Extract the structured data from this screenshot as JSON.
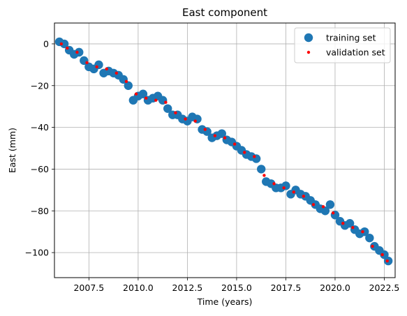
{
  "chart_data": {
    "type": "scatter",
    "title": "East component",
    "xlabel": "Time (years)",
    "ylabel": "East (mm)",
    "xlim": [
      2005.75,
      2023.05
    ],
    "ylim": [
      -112,
      10
    ],
    "xticks": [
      2007.5,
      2010.0,
      2012.5,
      2015.0,
      2017.5,
      2020.0,
      2022.5
    ],
    "xtick_labels": [
      "2007.5",
      "2010.0",
      "2012.5",
      "2015.0",
      "2017.5",
      "2020.0",
      "2022.5"
    ],
    "yticks": [
      0,
      -20,
      -40,
      -60,
      -80,
      -100
    ],
    "ytick_labels": [
      "0",
      "−20",
      "−40",
      "−60",
      "−80",
      "−100"
    ],
    "grid": true,
    "legend_position": "top-right",
    "series": [
      {
        "name": "training set",
        "color": "#1f77b4",
        "marker": "large-circle",
        "x": [
          2006.0,
          2006.25,
          2006.5,
          2006.75,
          2007.0,
          2007.25,
          2007.5,
          2007.75,
          2008.0,
          2008.25,
          2008.5,
          2008.75,
          2009.0,
          2009.25,
          2009.5,
          2009.75,
          2010.0,
          2010.25,
          2010.5,
          2010.75,
          2011.0,
          2011.25,
          2011.5,
          2011.75,
          2012.0,
          2012.25,
          2012.5,
          2012.75,
          2013.0,
          2013.25,
          2013.5,
          2013.75,
          2014.0,
          2014.25,
          2014.5,
          2014.75,
          2015.0,
          2015.25,
          2015.5,
          2015.75,
          2016.0,
          2016.25,
          2016.5,
          2016.75,
          2017.0,
          2017.25,
          2017.5,
          2017.75,
          2018.0,
          2018.25,
          2018.5,
          2018.75,
          2019.0,
          2019.25,
          2019.5,
          2019.75,
          2020.0,
          2020.25,
          2020.5,
          2020.75,
          2021.0,
          2021.25,
          2021.5,
          2021.75,
          2022.0,
          2022.25,
          2022.5,
          2022.7
        ],
        "y": [
          1,
          0,
          -3,
          -5,
          -4,
          -8,
          -11,
          -12,
          -10,
          -14,
          -13,
          -14,
          -15,
          -17,
          -20,
          -27,
          -25,
          -24,
          -27,
          -26,
          -25,
          -27,
          -31,
          -34,
          -34,
          -36,
          -37,
          -35,
          -36,
          -41,
          -42,
          -45,
          -44,
          -43,
          -46,
          -47,
          -49,
          -51,
          -53,
          -54,
          -55,
          -60,
          -66,
          -67,
          -69,
          -69,
          -68,
          -72,
          -70,
          -72,
          -73,
          -75,
          -77,
          -79,
          -80,
          -77,
          -82,
          -85,
          -87,
          -86,
          -89,
          -91,
          -90,
          -93,
          -97,
          -99,
          -101,
          -104
        ]
      },
      {
        "name": "validation set",
        "color": "#ff0000",
        "marker": "small-dot",
        "x": [
          2006.1,
          2006.4,
          2006.9,
          2007.4,
          2007.9,
          2008.4,
          2008.9,
          2009.4,
          2009.9,
          2010.4,
          2010.9,
          2011.4,
          2011.9,
          2012.4,
          2012.9,
          2013.4,
          2013.9,
          2014.4,
          2014.9,
          2015.4,
          2015.9,
          2016.4,
          2016.9,
          2017.4,
          2017.9,
          2018.4,
          2018.9,
          2019.4,
          2019.9,
          2020.4,
          2020.9,
          2021.4,
          2021.9,
          2022.4,
          2022.65
        ],
        "y": [
          0,
          -2,
          -4,
          -9,
          -11,
          -12,
          -14,
          -18,
          -24,
          -26,
          -27,
          -28,
          -33,
          -36,
          -37,
          -41,
          -44,
          -45,
          -48,
          -52,
          -54,
          -63,
          -67,
          -69,
          -71,
          -73,
          -77,
          -78,
          -81,
          -86,
          -88,
          -90,
          -97,
          -101,
          -104
        ]
      }
    ]
  }
}
